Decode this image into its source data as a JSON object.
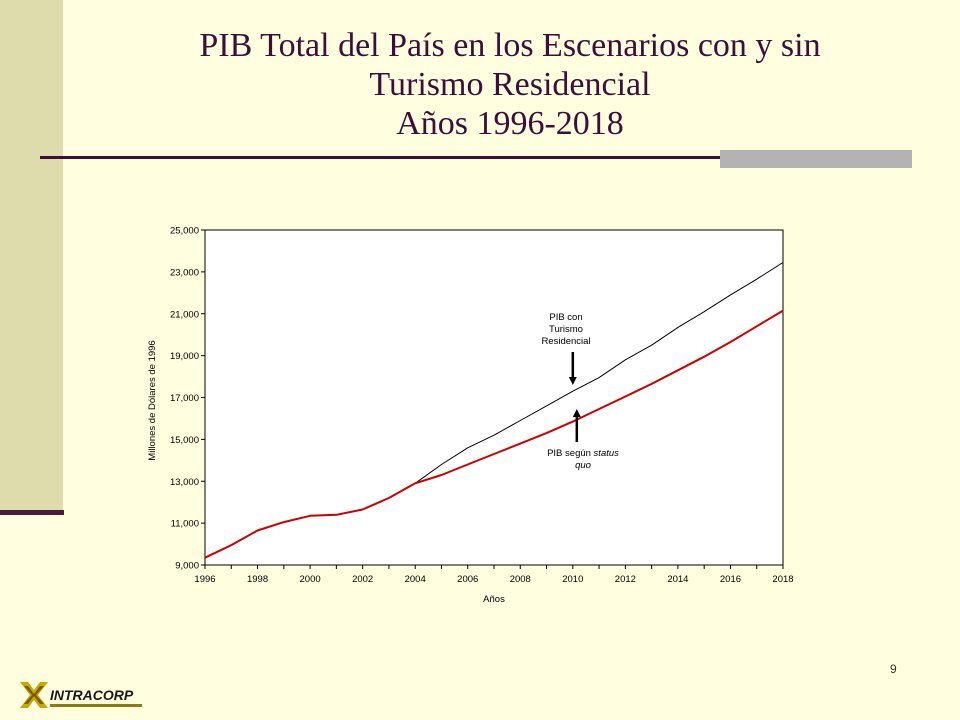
{
  "slide": {
    "title_lines": [
      "PIB Total del País en los Escenarios con y sin",
      "Turismo Residencial",
      "Años 1996-2018"
    ],
    "page_number": "9",
    "logo_text": "INTRACORP"
  },
  "colors": {
    "background": "#FFFFE0",
    "title": "#3E0E3A",
    "plot_background": "#FFFFFF",
    "series_tourism": "#000000",
    "series_status_quo": "#CC0000"
  },
  "chart_data": {
    "type": "line",
    "xlabel": "Años",
    "ylabel": "Millones de Dólares de 1996",
    "xlim": [
      1996,
      2018
    ],
    "ylim": [
      9000,
      25000
    ],
    "x_ticks": [
      "1996",
      "1998",
      "2000",
      "2002",
      "2004",
      "2006",
      "2008",
      "2010",
      "2012",
      "2014",
      "2016",
      "2018"
    ],
    "y_ticks": [
      "9,000",
      "11,000",
      "13,000",
      "15,000",
      "17,000",
      "19,000",
      "21,000",
      "23,000",
      "25,000"
    ],
    "grid": false,
    "x": [
      1996,
      1997,
      1998,
      1999,
      2000,
      2001,
      2002,
      2003,
      2004,
      2005,
      2006,
      2007,
      2008,
      2009,
      2010,
      2011,
      2012,
      2013,
      2014,
      2015,
      2016,
      2017,
      2018
    ],
    "series": [
      {
        "name": "PIB con Turismo Residencial",
        "color": "#000000",
        "values": [
          9350,
          9950,
          10650,
          11050,
          11350,
          11400,
          11650,
          12200,
          12900,
          13800,
          14600,
          15200,
          15900,
          16600,
          17300,
          17950,
          18800,
          19500,
          20350,
          21100,
          21900,
          22650,
          23450
        ]
      },
      {
        "name": "PIB según status quo",
        "color": "#CC0000",
        "values": [
          9350,
          9950,
          10650,
          11050,
          11350,
          11400,
          11650,
          12200,
          12900,
          13300,
          13800,
          14300,
          14800,
          15300,
          15850,
          16450,
          17050,
          17650,
          18300,
          18950,
          19650,
          20400,
          21150
        ]
      }
    ],
    "annotations": [
      {
        "lines": [
          "PIB con",
          "Turismo",
          "Residencial"
        ],
        "arrow_to_year": 2010,
        "arrow_to_value": 17550
      },
      {
        "lines": [
          "PIB según status",
          "quo"
        ],
        "italic_words": [
          "status",
          "quo"
        ],
        "arrow_to_year": 2010,
        "arrow_to_value": 16500
      }
    ]
  }
}
